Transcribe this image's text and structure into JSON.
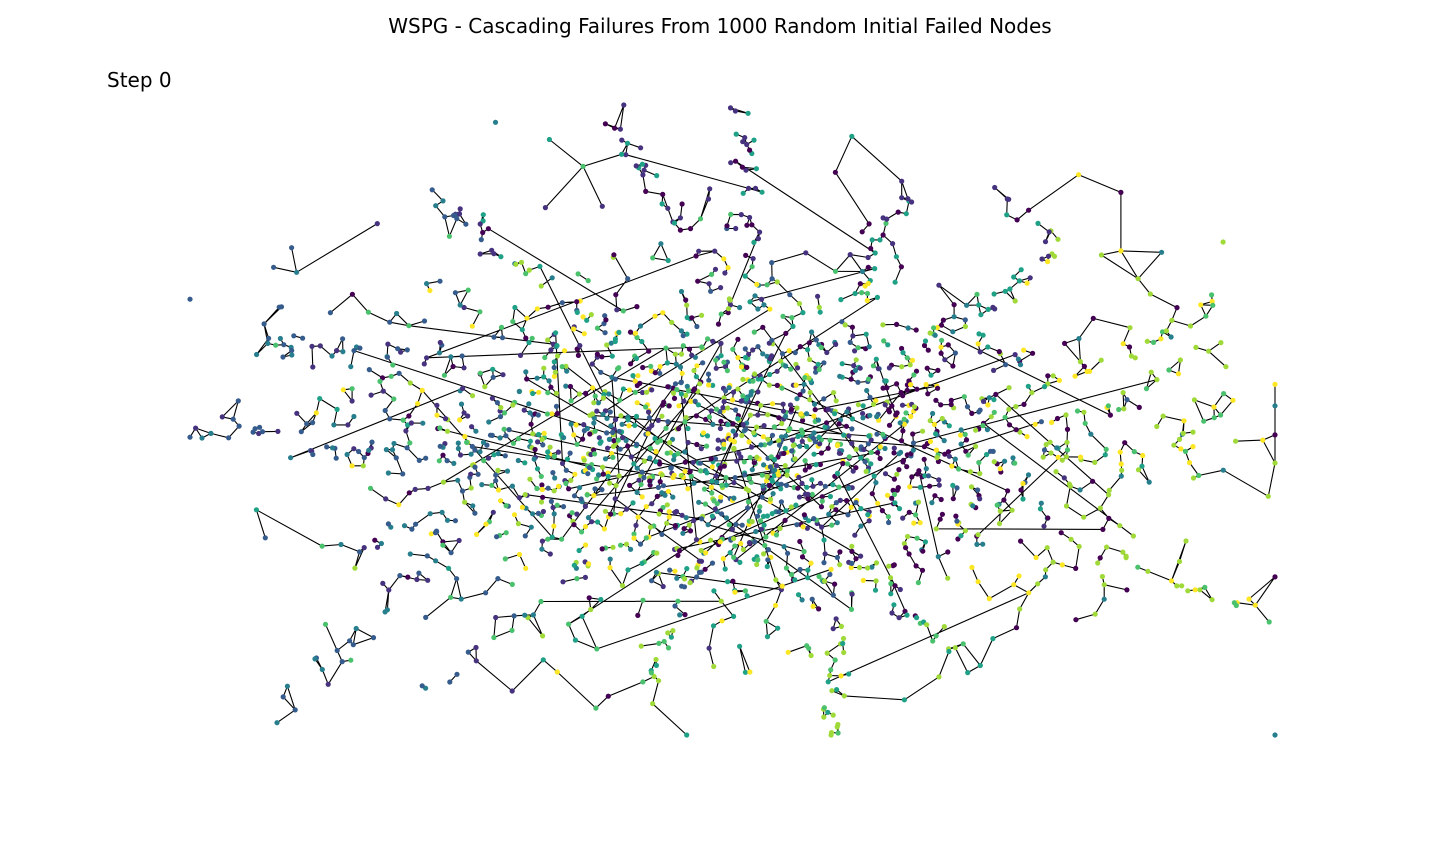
{
  "figure": {
    "title": "WSPG - Cascading Failures From 1000 Random Initial Failed Nodes",
    "step_label": "Step 0"
  },
  "network": {
    "node_palette": [
      "#440154",
      "#46327e",
      "#365c8d",
      "#277f8e",
      "#1fa187",
      "#4ac16d",
      "#a0da39",
      "#fde725"
    ],
    "edge_color": "#000000"
  }
}
